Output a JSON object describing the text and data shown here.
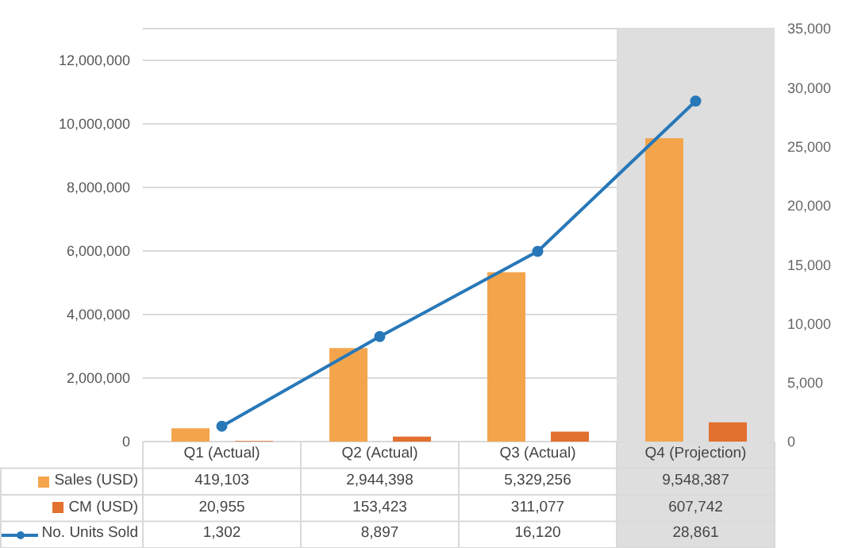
{
  "chart_data": {
    "type": "bar",
    "categories": [
      "Q1 (Actual)",
      "Q2 (Actual)",
      "Q3 (Actual)",
      "Q4 (Projection)"
    ],
    "series": [
      {
        "name": "Sales (USD)",
        "color": "#f4a54c",
        "values": [
          419103,
          2944398,
          5329256,
          9548387
        ],
        "value_labels": [
          "419,103",
          "2,944,398",
          "5,329,256",
          "9,548,387"
        ]
      },
      {
        "name": "CM (USD)",
        "color": "#e2702e",
        "values": [
          20955,
          153423,
          311077,
          607742
        ],
        "value_labels": [
          "20,955",
          "153,423",
          "311,077",
          "607,742"
        ]
      },
      {
        "name": "No. Units Sold",
        "type": "line",
        "axis": "y2",
        "color": "#2878b8",
        "values": [
          1302,
          8897,
          16120,
          28861
        ],
        "value_labels": [
          "1,302",
          "8,897",
          "16,120",
          "28,861"
        ]
      }
    ],
    "ylim": [
      0,
      13000000
    ],
    "yticks": [
      0,
      {
        "value": 2000000,
        "label": "2,000,000"
      },
      {
        "value": 4000000,
        "label": "4,000,000"
      },
      {
        "value": 6000000,
        "label": "6,000,000"
      },
      {
        "value": 8000000,
        "label": "8,000,000"
      },
      {
        "value": 10000000,
        "label": "10,000,000"
      },
      {
        "value": 12000000,
        "label": "12,000,000"
      }
    ],
    "y2lim": [
      0,
      35000
    ],
    "y2ticks": [
      0,
      {
        "value": 5000,
        "label": "5,000"
      },
      {
        "value": 10000,
        "label": "10,000"
      },
      {
        "value": 15000,
        "label": "15,000"
      },
      {
        "value": 20000,
        "label": "20,000"
      },
      {
        "value": 25000,
        "label": "25,000"
      },
      {
        "value": 30000,
        "label": "30,000"
      },
      {
        "value": 35000,
        "label": "35,000"
      }
    ],
    "grid": "y",
    "legend": "bottom",
    "marker": "circle",
    "bands": [
      {
        "axis": "x",
        "from": "Q4 (Projection)",
        "to": "Q4 (Projection)",
        "color": "#dedede"
      }
    ]
  }
}
